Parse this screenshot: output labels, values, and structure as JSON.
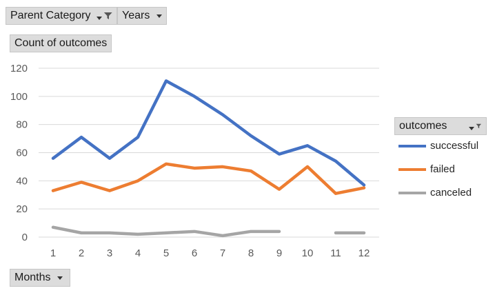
{
  "filters": {
    "category_label": "Parent Category",
    "years_label": "Years",
    "value_label": "Count of outcomes",
    "axis_field_label": "Months",
    "legend_field_label": "outcomes"
  },
  "chart_data": {
    "type": "line",
    "categories": [
      "1",
      "2",
      "3",
      "4",
      "5",
      "6",
      "7",
      "8",
      "9",
      "10",
      "11",
      "12"
    ],
    "series": [
      {
        "name": "successful",
        "color": "#4472c4",
        "values": [
          56,
          71,
          56,
          71,
          111,
          100,
          87,
          72,
          59,
          65,
          54,
          37
        ]
      },
      {
        "name": "failed",
        "color": "#ed7d31",
        "values": [
          33,
          39,
          33,
          40,
          52,
          49,
          50,
          47,
          34,
          50,
          31,
          35
        ]
      },
      {
        "name": "canceled",
        "color": "#a5a5a5",
        "values": [
          7,
          3,
          3,
          2,
          3,
          4,
          1,
          4,
          4,
          null,
          3,
          3
        ]
      }
    ],
    "yticks": [
      "0",
      "20",
      "40",
      "60",
      "80",
      "100",
      "120"
    ],
    "ylim": [
      0,
      120
    ],
    "grid": true,
    "legend_position": "right"
  }
}
